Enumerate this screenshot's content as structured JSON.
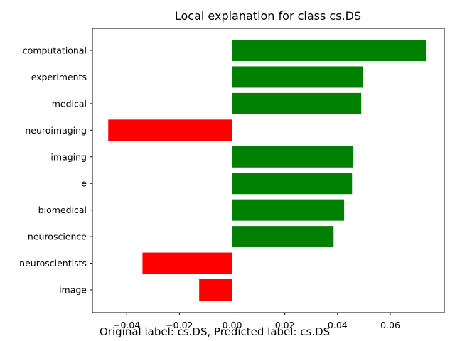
{
  "chart_data": {
    "type": "bar",
    "orientation": "horizontal",
    "title": "Local explanation for class cs.DS",
    "categories": [
      "computational",
      "experiments",
      "medical",
      "neuroimaging",
      "imaging",
      "e",
      "biomedical",
      "neuroscience",
      "neuroscientists",
      "image"
    ],
    "values": [
      0.0735,
      0.0495,
      0.049,
      -0.047,
      0.046,
      0.0455,
      0.0425,
      0.0385,
      -0.034,
      -0.0125
    ],
    "xlim": [
      -0.053,
      0.0805
    ],
    "xticks": [
      -0.04,
      -0.02,
      0.0,
      0.02,
      0.04,
      0.06
    ],
    "xtick_labels": [
      "−0.04",
      "−0.02",
      "0.00",
      "0.02",
      "0.04",
      "0.06"
    ],
    "positive_color": "#008000",
    "negative_color": "#ff0000",
    "grid": false
  },
  "caption": "Original label: cs.DS, Predicted label: cs.DS"
}
